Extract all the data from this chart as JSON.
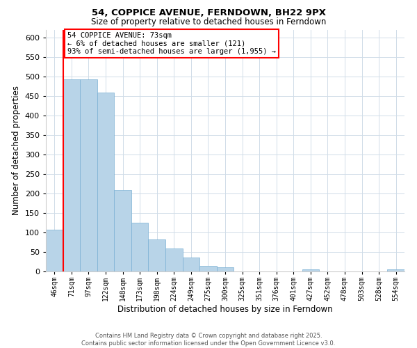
{
  "title": "54, COPPICE AVENUE, FERNDOWN, BH22 9PX",
  "subtitle": "Size of property relative to detached houses in Ferndown",
  "xlabel": "Distribution of detached houses by size in Ferndown",
  "ylabel": "Number of detached properties",
  "bar_color": "#b8d4e8",
  "bar_edge_color": "#7ab0d4",
  "categories": [
    "46sqm",
    "71sqm",
    "97sqm",
    "122sqm",
    "148sqm",
    "173sqm",
    "198sqm",
    "224sqm",
    "249sqm",
    "275sqm",
    "300sqm",
    "325sqm",
    "351sqm",
    "376sqm",
    "401sqm",
    "427sqm",
    "452sqm",
    "478sqm",
    "503sqm",
    "528sqm",
    "554sqm"
  ],
  "values": [
    107,
    493,
    493,
    459,
    208,
    125,
    82,
    58,
    36,
    15,
    10,
    0,
    0,
    0,
    0,
    5,
    0,
    0,
    0,
    0,
    5
  ],
  "ylim": [
    0,
    620
  ],
  "yticks": [
    0,
    50,
    100,
    150,
    200,
    250,
    300,
    350,
    400,
    450,
    500,
    550,
    600
  ],
  "annotation_title": "54 COPPICE AVENUE: 73sqm",
  "annotation_line1": "← 6% of detached houses are smaller (121)",
  "annotation_line2": "93% of semi-detached houses are larger (1,955) →",
  "footer_line1": "Contains HM Land Registry data © Crown copyright and database right 2025.",
  "footer_line2": "Contains public sector information licensed under the Open Government Licence v3.0.",
  "grid_color": "#d0dce8"
}
